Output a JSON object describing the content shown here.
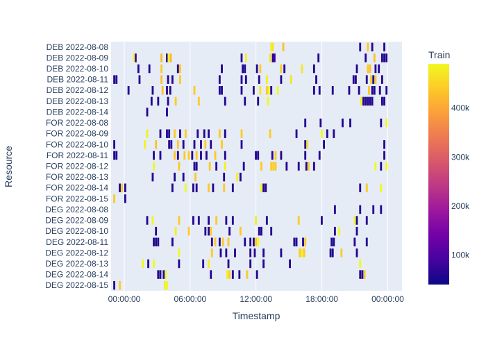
{
  "chart_data": {
    "type": "timeline",
    "xlabel": "Timestamp",
    "ylabel": "Resource",
    "x_ticks": [
      "00:00:00",
      "06:00:00",
      "12:00:00",
      "18:00:00",
      "00:00:00"
    ],
    "xlim_hours": [
      -1.2,
      25.3
    ],
    "resources": [
      "DEB 2022-08-08",
      "DEB 2022-08-09",
      "DEB 2022-08-10",
      "DEB 2022-08-11",
      "DEB 2022-08-12",
      "DEB 2022-08-13",
      "DEB 2022-08-14",
      "FOR 2022-08-08",
      "FOR 2022-08-09",
      "FOR 2022-08-10",
      "FOR 2022-08-11",
      "FOR 2022-08-12",
      "FOR 2022-08-13",
      "FOR 2022-08-14",
      "FOR 2022-08-15",
      "DEG 2022-08-08",
      "DEG 2022-08-09",
      "DEG 2022-08-10",
      "DEG 2022-08-11",
      "DEG 2022-08-12",
      "DEG 2022-08-13",
      "DEG 2022-08-14",
      "DEG 2022-08-15"
    ],
    "colorbar": {
      "title": "Train",
      "min": 40000,
      "max": 490000,
      "ticks": [
        100000,
        200000,
        300000,
        400000
      ],
      "tick_labels": [
        "100k",
        "200k",
        "300k",
        "400k"
      ],
      "colorscale": [
        "#0d0887",
        "#46039f",
        "#7201a8",
        "#9c179e",
        "#bd3786",
        "#d8576b",
        "#ed7953",
        "#fb9f3a",
        "#fdca26",
        "#f0f921"
      ]
    },
    "bar_duration_hours": 0.18,
    "bars": {
      "DEB 2022-08-08": [
        [
          13.3,
          480000
        ],
        [
          13.45,
          470000
        ],
        [
          14.4,
          430000
        ],
        [
          21.4,
          60000
        ],
        [
          22.1,
          440000
        ],
        [
          22.5,
          60000
        ],
        [
          23.6,
          60000
        ]
      ],
      "DEB 2022-08-09": [
        [
          0.8,
          490000
        ],
        [
          0.95,
          90000
        ],
        [
          3.3,
          420000
        ],
        [
          3.8,
          60000
        ],
        [
          3.95,
          480000
        ],
        [
          4.15,
          420000
        ],
        [
          10.6,
          60000
        ],
        [
          11.0,
          480000
        ],
        [
          13.2,
          470000
        ],
        [
          13.45,
          60000
        ],
        [
          13.6,
          90000
        ],
        [
          17.6,
          60000
        ],
        [
          21.9,
          60000
        ],
        [
          22.7,
          430000
        ],
        [
          23.4,
          60000
        ],
        [
          23.6,
          60000
        ],
        [
          23.8,
          60000
        ]
      ],
      "DEB 2022-08-10": [
        [
          1.2,
          60000
        ],
        [
          2.2,
          60000
        ],
        [
          3.3,
          440000
        ],
        [
          4.8,
          60000
        ],
        [
          5.0,
          440000
        ],
        [
          8.8,
          60000
        ],
        [
          10.7,
          60000
        ],
        [
          10.9,
          60000
        ],
        [
          12.0,
          60000
        ],
        [
          12.3,
          440000
        ],
        [
          14.2,
          440000
        ],
        [
          14.5,
          60000
        ],
        [
          16.1,
          470000
        ],
        [
          17.2,
          60000
        ],
        [
          21.1,
          60000
        ],
        [
          22.1,
          440000
        ],
        [
          22.3,
          430000
        ],
        [
          22.8,
          60000
        ],
        [
          23.1,
          60000
        ]
      ],
      "DEB 2022-08-11": [
        [
          -1.0,
          60000
        ],
        [
          -0.8,
          60000
        ],
        [
          1.3,
          60000
        ],
        [
          3.3,
          430000
        ],
        [
          3.9,
          60000
        ],
        [
          4.3,
          60000
        ],
        [
          5.0,
          440000
        ],
        [
          8.6,
          60000
        ],
        [
          10.6,
          60000
        ],
        [
          11.0,
          60000
        ],
        [
          12.2,
          60000
        ],
        [
          12.9,
          480000
        ],
        [
          14.2,
          60000
        ],
        [
          15.1,
          470000
        ],
        [
          17.4,
          60000
        ],
        [
          20.8,
          60000
        ],
        [
          21.0,
          60000
        ],
        [
          22.0,
          60000
        ],
        [
          22.4,
          440000
        ],
        [
          22.6,
          60000
        ],
        [
          22.8,
          440000
        ],
        [
          23.4,
          60000
        ]
      ],
      "DEB 2022-08-12": [
        [
          0.3,
          60000
        ],
        [
          2.5,
          60000
        ],
        [
          3.4,
          430000
        ],
        [
          3.8,
          60000
        ],
        [
          4.1,
          60000
        ],
        [
          6.3,
          440000
        ],
        [
          8.6,
          60000
        ],
        [
          8.8,
          60000
        ],
        [
          10.6,
          60000
        ],
        [
          11.7,
          60000
        ],
        [
          12.3,
          470000
        ],
        [
          12.9,
          440000
        ],
        [
          13.1,
          480000
        ],
        [
          13.3,
          60000
        ],
        [
          13.9,
          490000
        ],
        [
          17.2,
          60000
        ],
        [
          17.7,
          60000
        ],
        [
          18.9,
          60000
        ],
        [
          20.4,
          60000
        ],
        [
          21.3,
          60000
        ],
        [
          22.2,
          440000
        ],
        [
          22.5,
          60000
        ],
        [
          22.7,
          60000
        ],
        [
          23.2,
          60000
        ],
        [
          23.8,
          60000
        ]
      ],
      "DEB 2022-08-13": [
        [
          2.4,
          60000
        ],
        [
          3.0,
          60000
        ],
        [
          3.9,
          60000
        ],
        [
          4.6,
          440000
        ],
        [
          6.7,
          440000
        ],
        [
          9.1,
          60000
        ],
        [
          10.9,
          60000
        ],
        [
          12.1,
          60000
        ],
        [
          13.0,
          490000
        ],
        [
          21.5,
          480000
        ],
        [
          21.7,
          60000
        ],
        [
          21.9,
          60000
        ],
        [
          22.1,
          60000
        ],
        [
          22.3,
          60000
        ],
        [
          22.5,
          60000
        ],
        [
          23.4,
          60000
        ],
        [
          23.6,
          60000
        ]
      ],
      "DEB 2022-08-14": [
        [
          2.0,
          60000
        ],
        [
          3.8,
          60000
        ]
      ],
      "FOR 2022-08-08": [
        [
          16.4,
          60000
        ],
        [
          17.8,
          60000
        ],
        [
          19.8,
          60000
        ],
        [
          20.5,
          60000
        ],
        [
          23.3,
          60000
        ],
        [
          23.8,
          490000
        ]
      ],
      "FOR 2022-08-09": [
        [
          2.0,
          480000
        ],
        [
          3.2,
          60000
        ],
        [
          3.8,
          60000
        ],
        [
          4.0,
          60000
        ],
        [
          4.5,
          440000
        ],
        [
          5.0,
          60000
        ],
        [
          5.5,
          440000
        ],
        [
          6.6,
          60000
        ],
        [
          7.2,
          60000
        ],
        [
          7.6,
          60000
        ],
        [
          8.6,
          440000
        ],
        [
          9.1,
          60000
        ],
        [
          10.6,
          440000
        ],
        [
          13.2,
          440000
        ],
        [
          15.6,
          60000
        ],
        [
          17.9,
          490000
        ],
        [
          18.4,
          60000
        ],
        [
          19.0,
          60000
        ]
      ],
      "FOR 2022-08-10": [
        [
          -1.0,
          60000
        ],
        [
          1.8,
          480000
        ],
        [
          2.8,
          430000
        ],
        [
          4.0,
          60000
        ],
        [
          4.2,
          60000
        ],
        [
          4.8,
          440000
        ],
        [
          5.3,
          60000
        ],
        [
          6.3,
          60000
        ],
        [
          6.9,
          60000
        ],
        [
          7.3,
          440000
        ],
        [
          7.8,
          60000
        ],
        [
          8.8,
          440000
        ],
        [
          10.6,
          60000
        ],
        [
          16.4,
          60000
        ],
        [
          16.6,
          470000
        ],
        [
          18.1,
          60000
        ],
        [
          23.6,
          60000
        ]
      ],
      "FOR 2022-08-11": [
        [
          -1.0,
          60000
        ],
        [
          -0.8,
          60000
        ],
        [
          2.6,
          60000
        ],
        [
          3.2,
          60000
        ],
        [
          4.5,
          440000
        ],
        [
          4.8,
          60000
        ],
        [
          5.4,
          440000
        ],
        [
          5.8,
          440000
        ],
        [
          6.1,
          60000
        ],
        [
          6.5,
          440000
        ],
        [
          6.9,
          60000
        ],
        [
          7.4,
          60000
        ],
        [
          8.2,
          440000
        ],
        [
          9.1,
          60000
        ],
        [
          11.9,
          60000
        ],
        [
          12.1,
          60000
        ],
        [
          13.4,
          60000
        ],
        [
          13.7,
          440000
        ],
        [
          14.2,
          60000
        ],
        [
          16.4,
          60000
        ],
        [
          17.7,
          60000
        ],
        [
          23.6,
          60000
        ]
      ],
      "FOR 2022-08-12": [
        [
          2.6,
          490000
        ],
        [
          4.9,
          440000
        ],
        [
          6.3,
          60000
        ],
        [
          6.5,
          60000
        ],
        [
          7.7,
          440000
        ],
        [
          8.3,
          60000
        ],
        [
          9.1,
          480000
        ],
        [
          10.8,
          60000
        ],
        [
          12.4,
          440000
        ],
        [
          13.3,
          440000
        ],
        [
          13.5,
          440000
        ],
        [
          13.7,
          440000
        ],
        [
          14.7,
          60000
        ],
        [
          15.8,
          60000
        ],
        [
          16.5,
          60000
        ],
        [
          16.7,
          440000
        ],
        [
          17.2,
          60000
        ],
        [
          22.8,
          490000
        ],
        [
          23.3,
          60000
        ],
        [
          23.8,
          490000
        ]
      ],
      "FOR 2022-08-13": [
        [
          2.5,
          60000
        ],
        [
          4.5,
          60000
        ],
        [
          5.3,
          60000
        ],
        [
          6.4,
          440000
        ],
        [
          9.0,
          60000
        ],
        [
          10.2,
          480000
        ],
        [
          10.5,
          60000
        ]
      ],
      "FOR 2022-08-14": [
        [
          -0.5,
          60000
        ],
        [
          -0.3,
          440000
        ],
        [
          0.0,
          60000
        ],
        [
          4.3,
          60000
        ],
        [
          5.5,
          490000
        ],
        [
          6.2,
          60000
        ],
        [
          6.5,
          60000
        ],
        [
          7.6,
          440000
        ],
        [
          8.0,
          60000
        ],
        [
          9.0,
          440000
        ],
        [
          9.8,
          60000
        ],
        [
          12.4,
          490000
        ],
        [
          12.6,
          60000
        ],
        [
          12.8,
          60000
        ],
        [
          21.4,
          60000
        ],
        [
          22.0,
          440000
        ],
        [
          23.3,
          490000
        ]
      ],
      "FOR 2022-08-15": [
        [
          -1.0,
          440000
        ],
        [
          0.0,
          60000
        ]
      ],
      "DEG 2022-08-08": [
        [
          19.1,
          60000
        ],
        [
          21.4,
          60000
        ],
        [
          22.6,
          60000
        ],
        [
          23.3,
          60000
        ]
      ],
      "DEG 2022-08-09": [
        [
          2.0,
          60000
        ],
        [
          2.5,
          490000
        ],
        [
          4.9,
          440000
        ],
        [
          6.2,
          60000
        ],
        [
          6.7,
          60000
        ],
        [
          7.6,
          60000
        ],
        [
          8.3,
          440000
        ],
        [
          9.2,
          60000
        ],
        [
          9.8,
          60000
        ],
        [
          11.9,
          480000
        ],
        [
          12.9,
          60000
        ],
        [
          15.8,
          440000
        ],
        [
          17.9,
          60000
        ],
        [
          20.9,
          490000
        ],
        [
          21.1,
          60000
        ],
        [
          22.0,
          60000
        ]
      ],
      "DEG 2022-08-10": [
        [
          2.8,
          60000
        ],
        [
          4.6,
          480000
        ],
        [
          5.8,
          440000
        ],
        [
          7.3,
          60000
        ],
        [
          7.6,
          60000
        ],
        [
          7.8,
          440000
        ],
        [
          9.5,
          60000
        ],
        [
          10.5,
          440000
        ],
        [
          12.2,
          60000
        ],
        [
          12.4,
          60000
        ],
        [
          13.3,
          60000
        ],
        [
          19.1,
          60000
        ],
        [
          19.5,
          490000
        ],
        [
          21.1,
          60000
        ]
      ],
      "DEG 2022-08-11": [
        [
          2.6,
          60000
        ],
        [
          2.8,
          60000
        ],
        [
          3.0,
          60000
        ],
        [
          4.3,
          60000
        ],
        [
          7.9,
          60000
        ],
        [
          8.2,
          440000
        ],
        [
          8.6,
          60000
        ],
        [
          8.9,
          440000
        ],
        [
          9.4,
          440000
        ],
        [
          10.9,
          60000
        ],
        [
          11.4,
          60000
        ],
        [
          11.7,
          60000
        ],
        [
          11.9,
          440000
        ],
        [
          12.1,
          490000
        ],
        [
          15.4,
          60000
        ],
        [
          15.6,
          60000
        ],
        [
          16.2,
          60000
        ],
        [
          16.4,
          440000
        ],
        [
          18.8,
          60000
        ],
        [
          19.0,
          60000
        ],
        [
          20.9,
          60000
        ],
        [
          22.0,
          60000
        ]
      ],
      "DEG 2022-08-12": [
        [
          4.9,
          490000
        ],
        [
          7.9,
          440000
        ],
        [
          8.7,
          60000
        ],
        [
          9.2,
          60000
        ],
        [
          10.0,
          60000
        ],
        [
          11.4,
          60000
        ],
        [
          11.8,
          60000
        ],
        [
          12.6,
          60000
        ],
        [
          14.2,
          60000
        ],
        [
          15.9,
          440000
        ],
        [
          16.1,
          480000
        ],
        [
          16.3,
          440000
        ],
        [
          18.7,
          60000
        ],
        [
          18.9,
          60000
        ],
        [
          19.7,
          440000
        ],
        [
          21.1,
          60000
        ]
      ],
      "DEG 2022-08-13": [
        [
          1.6,
          490000
        ],
        [
          2.1,
          60000
        ],
        [
          2.6,
          490000
        ],
        [
          4.9,
          60000
        ],
        [
          7.1,
          60000
        ],
        [
          7.6,
          480000
        ],
        [
          9.4,
          60000
        ],
        [
          11.4,
          60000
        ],
        [
          12.6,
          60000
        ],
        [
          15.0,
          60000
        ],
        [
          21.4,
          490000
        ]
      ],
      "DEG 2022-08-14": [
        [
          3.0,
          60000
        ],
        [
          3.2,
          60000
        ],
        [
          3.5,
          60000
        ],
        [
          3.7,
          490000
        ],
        [
          7.8,
          60000
        ],
        [
          9.3,
          480000
        ],
        [
          9.5,
          440000
        ],
        [
          9.8,
          60000
        ],
        [
          10.4,
          60000
        ],
        [
          11.1,
          440000
        ],
        [
          12.0,
          60000
        ],
        [
          21.4,
          60000
        ],
        [
          21.6,
          60000
        ],
        [
          21.8,
          440000
        ]
      ],
      "DEG 2022-08-15": [
        [
          -1.0,
          60000
        ],
        [
          -0.5,
          440000
        ],
        [
          3.6,
          480000
        ],
        [
          3.8,
          490000
        ]
      ]
    }
  }
}
